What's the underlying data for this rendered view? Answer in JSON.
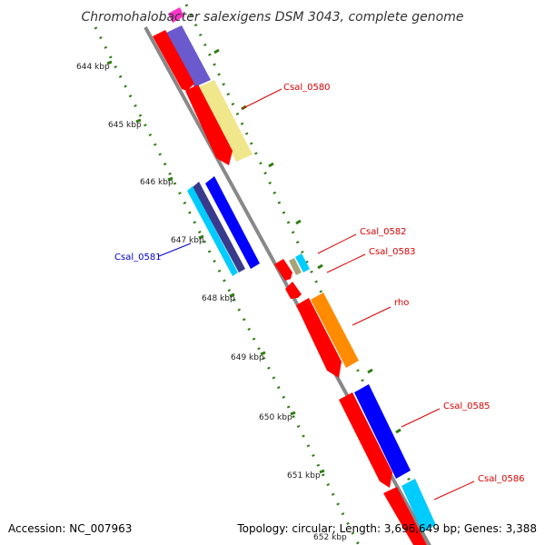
{
  "title": "Chromohalobacter salexigens DSM 3043, complete genome",
  "accession": "Accession: NC_007963",
  "summary": "Topology: circular; Length: 3,696,649 bp; Genes: 3,388",
  "colors": {
    "backbone": "#888888",
    "tick": "#2e7d10",
    "label_red": "#dd0000",
    "label_blue": "#0000cc",
    "cds_red": "#ff0000",
    "cds_blue": "#0000ff",
    "cds_purple": "#6a5acd",
    "cds_yellow": "#f0e68c",
    "cds_cyan": "#00ccff",
    "cds_magenta": "#ff33cc",
    "cds_orange": "#ff8c00",
    "cds_olive": "#aaa37a",
    "cds_navy": "#3a3a8c"
  },
  "scale_ticks": [
    "644 kbp",
    "645 kbp",
    "646 kbp",
    "647 kbp",
    "648 kbp",
    "649 kbp",
    "650 kbp",
    "651 kbp",
    "652 kbp"
  ],
  "gene_labels": {
    "csal_0580": "Csal_0580",
    "csal_0581": "Csal_0581",
    "csal_0582": "Csal_0582",
    "csal_0583": "Csal_0583",
    "rho": "rho",
    "csal_0585": "Csal_0585",
    "csal_0586": "Csal_0586"
  }
}
